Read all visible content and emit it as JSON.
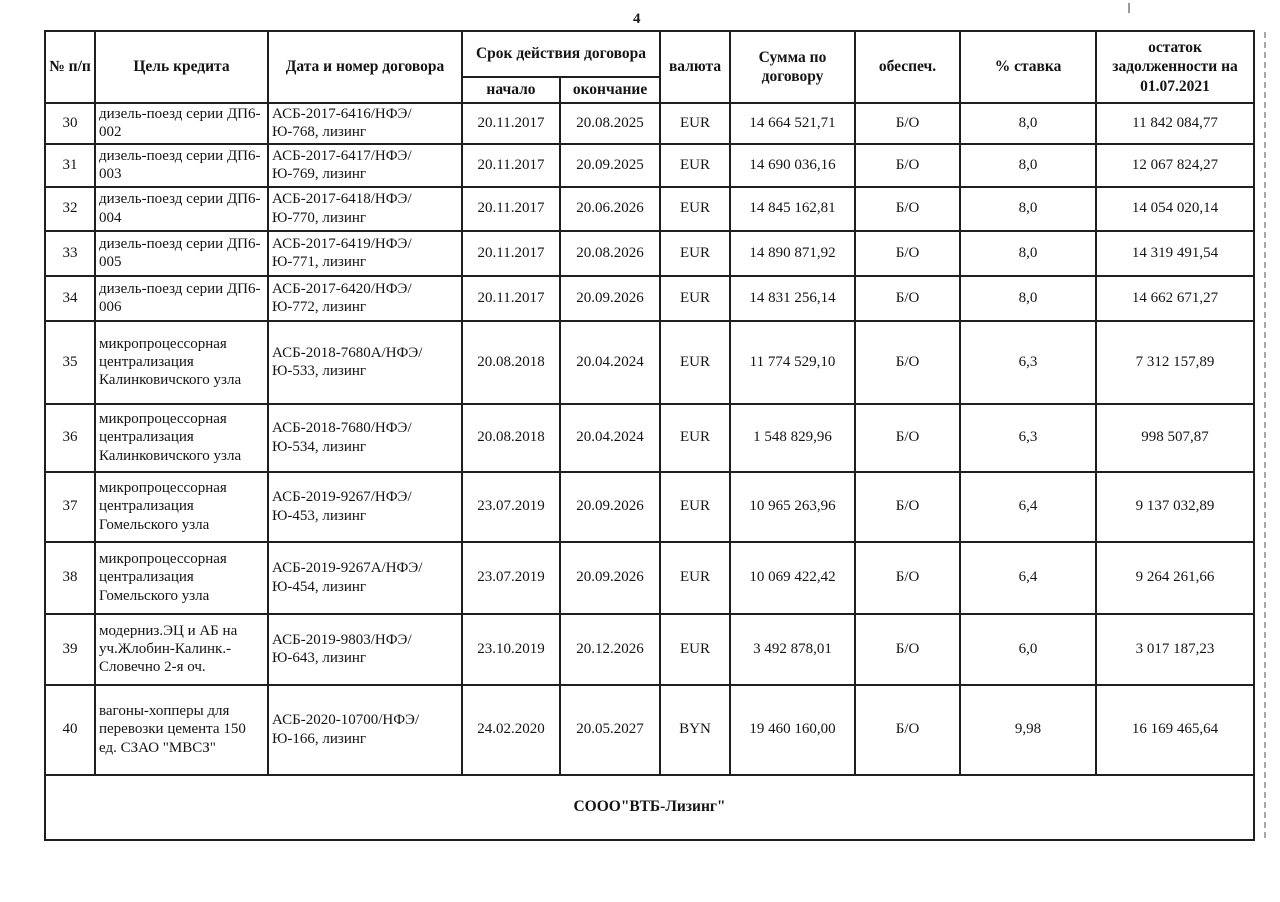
{
  "page": {
    "number": "4"
  },
  "table": {
    "headers": {
      "num": "№  п/п",
      "purpose": "Цель кредита",
      "contract": "Дата и номер договора",
      "term_group": "Срок действия договора",
      "term_start": "начало",
      "term_end": "окончание",
      "currency": "валюта",
      "amount": "Сумма по договору",
      "collateral": "обеспеч.",
      "rate": "% ставка",
      "balance": "остаток задолженности на 01.07.2021"
    },
    "rows": [
      {
        "num": "30",
        "purpose": "дизель-поезд серии ДП6-002",
        "contract": "АСБ-2017-6416/НФЭ/Ю-768, лизинг",
        "start": "20.11.2017",
        "end": "20.08.2025",
        "currency": "EUR",
        "amount": "14 664 521,71",
        "collateral": "Б/О",
        "rate": "8,0",
        "balance": "11 842 084,77"
      },
      {
        "num": "31",
        "purpose": "дизель-поезд серии ДП6-003",
        "contract": "АСБ-2017-6417/НФЭ/Ю-769, лизинг",
        "start": "20.11.2017",
        "end": "20.09.2025",
        "currency": "EUR",
        "amount": "14 690 036,16",
        "collateral": "Б/О",
        "rate": "8,0",
        "balance": "12 067 824,27"
      },
      {
        "num": "32",
        "purpose": "дизель-поезд серии ДП6-004",
        "contract": "АСБ-2017-6418/НФЭ/Ю-770, лизинг",
        "start": "20.11.2017",
        "end": "20.06.2026",
        "currency": "EUR",
        "amount": "14 845 162,81",
        "collateral": "Б/О",
        "rate": "8,0",
        "balance": "14 054 020,14"
      },
      {
        "num": "33",
        "purpose": "дизель-поезд серии ДП6-005",
        "contract": "АСБ-2017-6419/НФЭ/Ю-771, лизинг",
        "start": "20.11.2017",
        "end": "20.08.2026",
        "currency": "EUR",
        "amount": "14 890 871,92",
        "collateral": "Б/О",
        "rate": "8,0",
        "balance": "14 319 491,54"
      },
      {
        "num": "34",
        "purpose": "дизель-поезд серии ДП6-006",
        "contract": "АСБ-2017-6420/НФЭ/Ю-772, лизинг",
        "start": "20.11.2017",
        "end": "20.09.2026",
        "currency": "EUR",
        "amount": "14 831 256,14",
        "collateral": "Б/О",
        "rate": "8,0",
        "balance": "14 662 671,27"
      },
      {
        "num": "35",
        "purpose": "микропроцессорная централизация Калинковичского узла",
        "contract": "АСБ-2018-7680А/НФЭ/Ю-533, лизинг",
        "start": "20.08.2018",
        "end": "20.04.2024",
        "currency": "EUR",
        "amount": "11 774 529,10",
        "collateral": "Б/О",
        "rate": "6,3",
        "balance": "7 312 157,89"
      },
      {
        "num": "36",
        "purpose": "микропроцессорная централизация Калинковичского узла",
        "contract": "АСБ-2018-7680/НФЭ/Ю-534, лизинг",
        "start": "20.08.2018",
        "end": "20.04.2024",
        "currency": "EUR",
        "amount": "1 548 829,96",
        "collateral": "Б/О",
        "rate": "6,3",
        "balance": "998 507,87"
      },
      {
        "num": "37",
        "purpose": "микропроцессорная централизация Гомельского узла",
        "contract": "АСБ-2019-9267/НФЭ/Ю-453, лизинг",
        "start": "23.07.2019",
        "end": "20.09.2026",
        "currency": "EUR",
        "amount": "10 965 263,96",
        "collateral": "Б/О",
        "rate": "6,4",
        "balance": "9 137 032,89"
      },
      {
        "num": "38",
        "purpose": "микропроцессорная централизация Гомельского узла",
        "contract": "АСБ-2019-9267А/НФЭ/Ю-454, лизинг",
        "start": "23.07.2019",
        "end": "20.09.2026",
        "currency": "EUR",
        "amount": "10 069 422,42",
        "collateral": "Б/О",
        "rate": "6,4",
        "balance": "9 264 261,66"
      },
      {
        "num": "39",
        "purpose": "модерниз.ЭЦ и АБ на уч.Жлобин-Калинк.-Словечно 2-я оч.",
        "contract": "АСБ-2019-9803/НФЭ/Ю-643, лизинг",
        "start": "23.10.2019",
        "end": "20.12.2026",
        "currency": "EUR",
        "amount": "3 492 878,01",
        "collateral": "Б/О",
        "rate": "6,0",
        "balance": "3 017 187,23"
      },
      {
        "num": "40",
        "purpose": "вагоны-хопперы для перевозки цемента  150 ед. СЗАО \"МВСЗ\"",
        "contract": "АСБ-2020-10700/НФЭ/Ю-166, лизинг",
        "start": "24.02.2020",
        "end": "20.05.2027",
        "currency": "BYN",
        "amount": "19 460 160,00",
        "collateral": "Б/О",
        "rate": "9,98",
        "balance": "16 169 465,64"
      }
    ],
    "footer": "СООО\"ВТБ-Лизинг\""
  }
}
